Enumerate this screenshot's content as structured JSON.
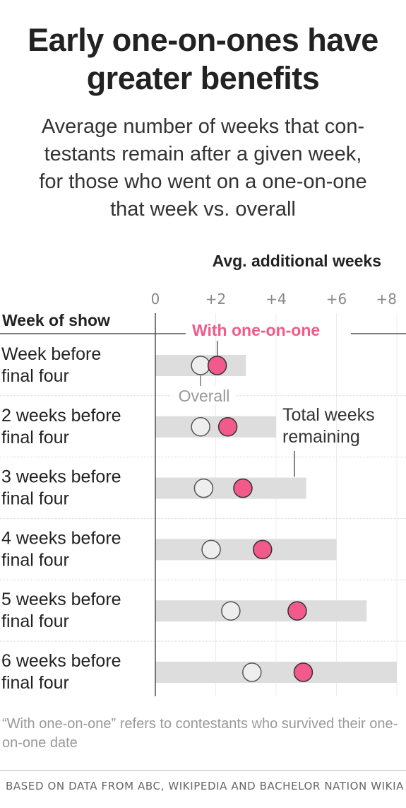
{
  "title_line1": "Early one-on-ones have",
  "title_line2": "greater benefits",
  "subtitle": {
    "line1": "Average number of weeks that con-",
    "line2": "testants remain after a given week,",
    "line3": "for those who went on a one-on-one",
    "line4": "that week vs. overall"
  },
  "note_text": "“With one-on-one” refers to contestants who survived their one-on-one date",
  "source_text": "BASED ON DATA FROM ABC, WIKIPEDIA AND BACHELOR NATION WIKIA",
  "colors": {
    "one_on_one": "#f15a8b",
    "overall": "#eeeeee",
    "bar": "#dddddd"
  },
  "chart_data": {
    "type": "dot",
    "xlabel": "Avg. additional weeks",
    "ylabel": "Week of show",
    "xlim": [
      0,
      8
    ],
    "ticks": [
      {
        "value": 0,
        "label": "0"
      },
      {
        "value": 2,
        "label": "+2"
      },
      {
        "value": 4,
        "label": "+4"
      },
      {
        "value": 6,
        "label": "+6"
      },
      {
        "value": 8,
        "label": "+8"
      }
    ],
    "categories": [
      {
        "line1": "Week before",
        "line2": "final four"
      },
      {
        "line1": "2 weeks before",
        "line2": "final four"
      },
      {
        "line1": "3 weeks before",
        "line2": "final four"
      },
      {
        "line1": "4 weeks before",
        "line2": "final four"
      },
      {
        "line1": "5 weeks before",
        "line2": "final four"
      },
      {
        "line1": "6 weeks before",
        "line2": "final four"
      }
    ],
    "series": [
      {
        "name": "Total weeks remaining",
        "values": [
          3,
          4,
          5,
          6,
          7,
          8
        ]
      },
      {
        "name": "Overall",
        "values": [
          1.5,
          1.5,
          1.6,
          1.85,
          2.5,
          3.2
        ]
      },
      {
        "name": "With one-on-one",
        "values": [
          2.05,
          2.4,
          2.9,
          3.55,
          4.7,
          4.9
        ]
      }
    ],
    "annotations": {
      "with_one_on_one": "With one-on-one",
      "overall": "Overall",
      "total_line1": "Total weeks",
      "total_line2": "remaining"
    }
  }
}
